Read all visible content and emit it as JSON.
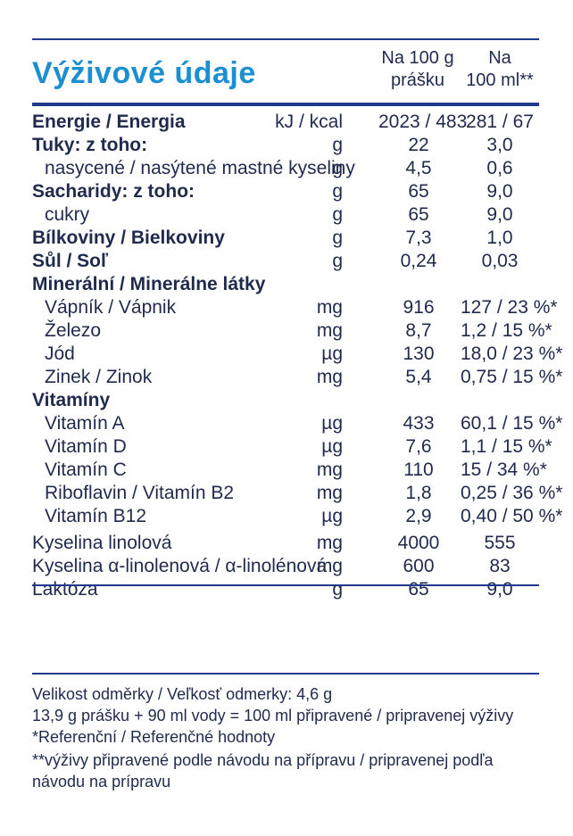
{
  "title": "Výživové údaje",
  "columns": {
    "per100g": [
      "Na 100 g",
      "prášku"
    ],
    "per100ml": [
      "Na",
      "100 ml**"
    ]
  },
  "rows": [
    {
      "label": "Energie / Energia",
      "style": "bold",
      "indent": false,
      "unit": "kJ / kcal",
      "v1": "2023 / 483",
      "v2": "281 / 67"
    },
    {
      "label": "Tuky: z toho:",
      "style": "bold",
      "indent": false,
      "unit": "g",
      "v1": "22",
      "v2": "3,0"
    },
    {
      "label": "nasycené / nasýtené mastné kyseliny",
      "style": "",
      "indent": true,
      "unit": "g",
      "v1": "4,5",
      "v2": "0,6"
    },
    {
      "label": "Sacharidy: z toho:",
      "style": "bold",
      "indent": false,
      "unit": "g",
      "v1": "65",
      "v2": "9,0"
    },
    {
      "label": "cukry",
      "style": "",
      "indent": true,
      "unit": "g",
      "v1": "65",
      "v2": "9,0"
    },
    {
      "label": "Bílkoviny / Bielkoviny",
      "style": "bold",
      "indent": false,
      "unit": "g",
      "v1": "7,3",
      "v2": "1,0"
    },
    {
      "label": "Sůl / Soľ",
      "style": "bold",
      "indent": false,
      "unit": "g",
      "v1": "0,24",
      "v2": "0,03"
    },
    {
      "label": "Minerální / Minerálne látky",
      "style": "bold",
      "indent": false,
      "unit": "",
      "v1": "",
      "v2": ""
    },
    {
      "label": "Vápník / Vápnik",
      "style": "",
      "indent": true,
      "unit": "mg",
      "v1": "916",
      "v2": "127 / 23 %*"
    },
    {
      "label": "Železo",
      "style": "",
      "indent": true,
      "unit": "mg",
      "v1": "8,7",
      "v2": "1,2 / 15 %*"
    },
    {
      "label": "Jód",
      "style": "",
      "indent": true,
      "unit": "µg",
      "v1": "130",
      "v2": "18,0 / 23 %*"
    },
    {
      "label": "Zinek / Zinok",
      "style": "",
      "indent": true,
      "unit": "mg",
      "v1": "5,4",
      "v2": "0,75 / 15 %*"
    },
    {
      "label": "Vitamíny",
      "style": "bold",
      "indent": false,
      "unit": "",
      "v1": "",
      "v2": ""
    },
    {
      "label": "Vitamín A",
      "style": "",
      "indent": true,
      "unit": "µg",
      "v1": "433",
      "v2": "60,1 / 15 %*"
    },
    {
      "label": "Vitamín D",
      "style": "",
      "indent": true,
      "unit": "µg",
      "v1": "7,6",
      "v2": "1,1 / 15 %*"
    },
    {
      "label": "Vitamín C",
      "style": "",
      "indent": true,
      "unit": "mg",
      "v1": "110",
      "v2": "15 / 34 %*"
    },
    {
      "label": "Riboflavin / Vitamín B2",
      "style": "",
      "indent": true,
      "unit": "mg",
      "v1": "1,8",
      "v2": "0,25 / 36 %*"
    },
    {
      "label": "Vitamín B12",
      "style": "",
      "indent": true,
      "unit": "µg",
      "v1": "2,9",
      "v2": "0,40 / 50 %*"
    },
    {
      "label": "Kyselina linolová",
      "style": "",
      "indent": false,
      "unit": "mg",
      "v1": "4000",
      "v2": "555"
    },
    {
      "label": "Kyselina α-linolenová / α-linolénová",
      "style": "",
      "indent": false,
      "unit": "mg",
      "v1": "600",
      "v2": "83"
    },
    {
      "label": "Laktóza",
      "style": "",
      "indent": false,
      "unit": "g",
      "v1": "65",
      "v2": "9,0"
    }
  ],
  "notes": [
    "Velikost odměrky / Veľkosť odmerky: 4,6 g",
    "13,9 g prášku + 90 ml vody = 100 ml připravené / pripravenej výživy",
    "*Referenční / Referenčné hodnoty",
    "**výživy připravené podle návodu na přípravu / pripravenej podľa",
    "návodu na prípravu"
  ],
  "colors": {
    "title": "#1c8fd3",
    "rule": "#1f3a8a",
    "text": "#1f2a4d"
  }
}
